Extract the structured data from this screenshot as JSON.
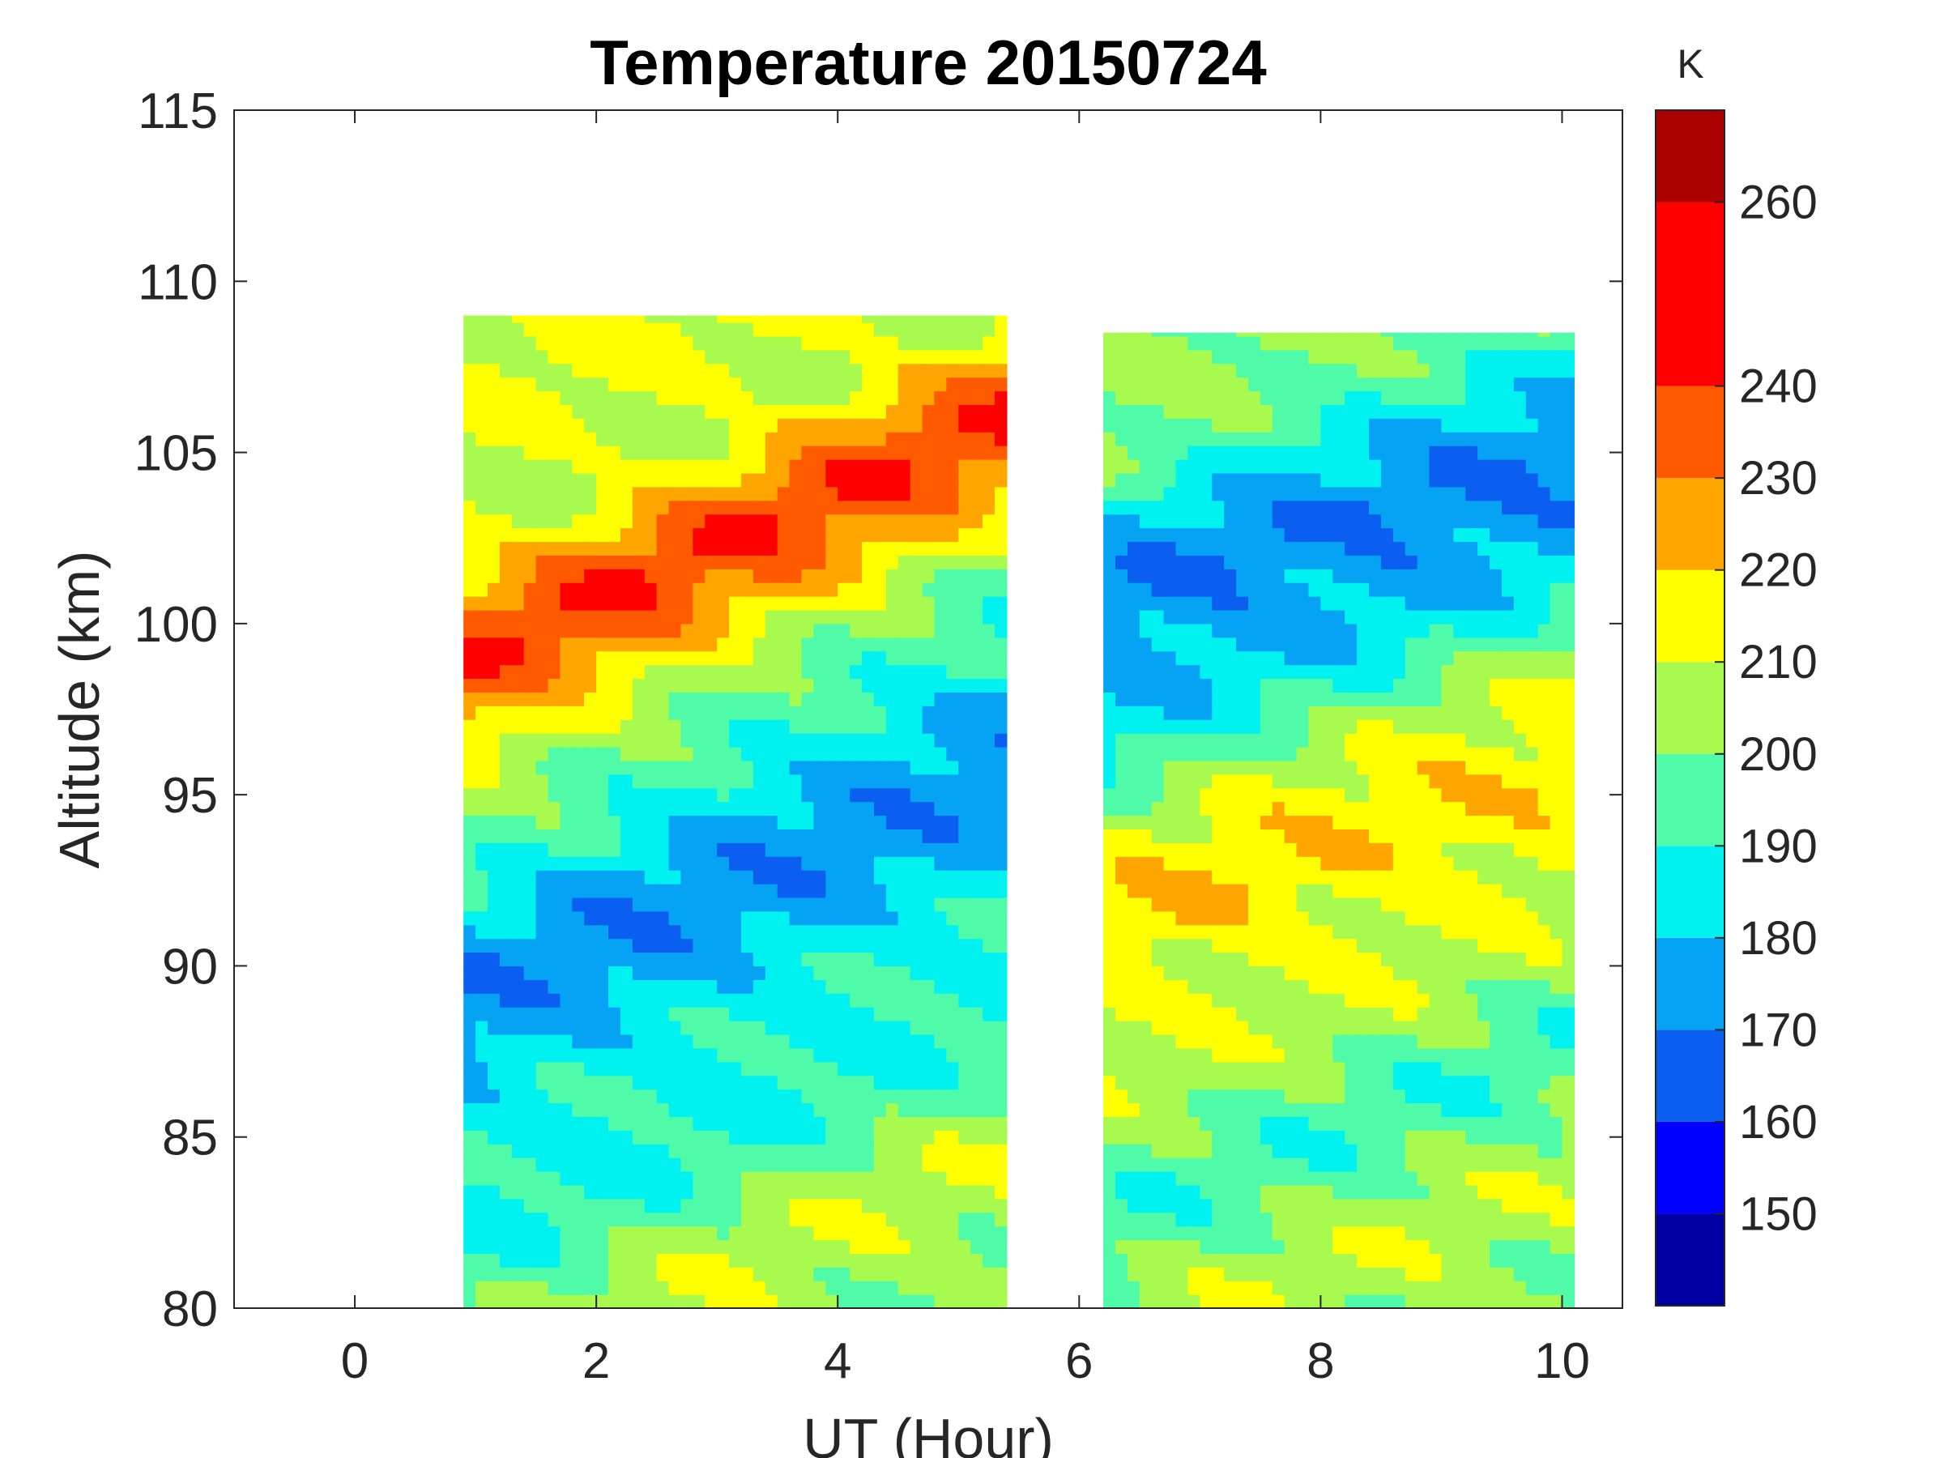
{
  "chart_data": {
    "type": "heatmap",
    "subtype": "filled-contour",
    "title": "Temperature 20150724",
    "xlabel": "UT (Hour)",
    "ylabel": "Altitude (km)",
    "xlim": [
      -1,
      10.5
    ],
    "ylim": [
      80,
      115
    ],
    "xticks": [
      0,
      2,
      4,
      6,
      8,
      10
    ],
    "yticks": [
      80,
      85,
      90,
      95,
      100,
      105,
      110,
      115
    ],
    "colorbar": {
      "unit_label": "K",
      "range": [
        140,
        270
      ],
      "ticks": [
        150,
        160,
        170,
        180,
        190,
        200,
        210,
        220,
        230,
        240,
        260
      ],
      "levels": [
        140,
        150,
        160,
        170,
        180,
        190,
        200,
        210,
        220,
        230,
        240,
        260,
        270
      ],
      "colors": [
        "#0000a3",
        "#0000ff",
        "#0a5ef0",
        "#06a3f5",
        "#00f2f0",
        "#4ffaa8",
        "#a8fa4f",
        "#ffff00",
        "#ffa500",
        "#ff5a00",
        "#ff0000",
        "#aa0000"
      ]
    },
    "data_gaps": [
      {
        "ut_start": -1.0,
        "ut_end": 0.9,
        "note": "no data"
      },
      {
        "ut_start": 5.4,
        "ut_end": 6.2,
        "note": "no data"
      },
      {
        "ut_start": 10.1,
        "ut_end": 10.5,
        "note": "no data"
      }
    ],
    "segments": [
      {
        "ut_range": [
          0.9,
          5.4
        ],
        "altitude_range": [
          80,
          109
        ],
        "bands": [
          {
            "altitude_km": 81.5,
            "temperature_K": 205
          },
          {
            "altitude_km": 85,
            "temperature_K": 192
          },
          {
            "altitude_km": 88,
            "temperature_K": 185
          },
          {
            "altitude_km": 91,
            "temperature_K": 178
          },
          {
            "altitude_km": 94,
            "temperature_K": 175
          },
          {
            "altitude_km": 97,
            "temperature_K": 195
          },
          {
            "altitude_km": 100,
            "temperature_K": 222
          },
          {
            "altitude_km": 102.5,
            "temperature_K": 238
          },
          {
            "altitude_km": 106,
            "temperature_K": 210
          }
        ]
      },
      {
        "ut_range": [
          6.2,
          10.1
        ],
        "altitude_range": [
          80,
          108.5
        ],
        "bands": [
          {
            "altitude_km": 81,
            "temperature_K": 205
          },
          {
            "altitude_km": 85,
            "temperature_K": 195
          },
          {
            "altitude_km": 89,
            "temperature_K": 205
          },
          {
            "altitude_km": 93,
            "temperature_K": 222
          },
          {
            "altitude_km": 97,
            "temperature_K": 200
          },
          {
            "altitude_km": 100,
            "temperature_K": 180
          },
          {
            "altitude_km": 103,
            "temperature_K": 165
          },
          {
            "altitude_km": 106.5,
            "temperature_K": 200
          }
        ]
      }
    ]
  }
}
